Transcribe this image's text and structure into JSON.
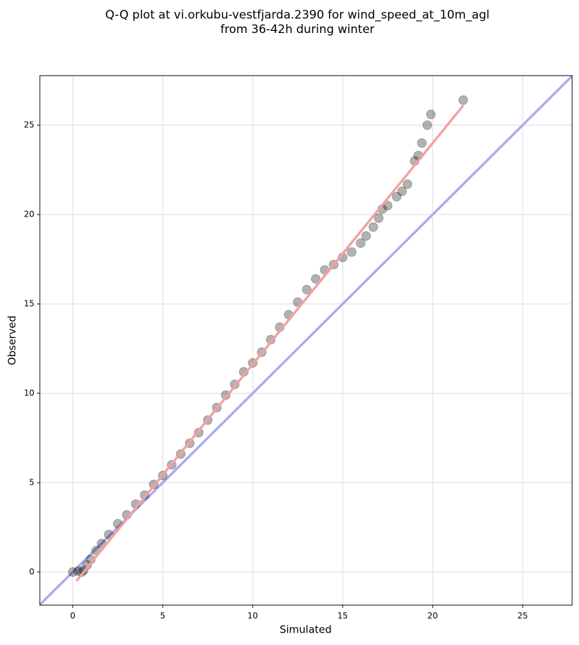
{
  "chart_data": {
    "type": "scatter",
    "title": [
      "Q-Q plot at vi.orkubu-vestfjarda.2390 for wind_speed_at_10m_agl",
      "from 36-42h during winter"
    ],
    "xlabel": "Simulated",
    "ylabel": "Observed",
    "xlim": [
      -1.83,
      27.75
    ],
    "ylim": [
      -1.85,
      27.77
    ],
    "xticks": [
      0,
      5,
      10,
      15,
      20,
      25
    ],
    "yticks": [
      0,
      5,
      10,
      15,
      20,
      25
    ],
    "grid": true,
    "points": {
      "color": "#000000",
      "x": [
        0,
        0.3,
        0.5,
        0.6,
        0.8,
        1,
        1.3,
        1.6,
        2,
        2.5,
        3,
        3.5,
        4,
        4.5,
        5,
        5.5,
        6,
        6.5,
        7,
        7.5,
        8,
        8.5,
        9,
        9.5,
        10,
        10.5,
        11,
        11.5,
        12,
        12.5,
        13,
        13.5,
        14,
        14.5,
        15,
        15.5,
        16,
        16.3,
        16.7,
        17,
        17.2,
        17.5,
        18,
        18.3,
        18.6,
        19,
        19.2,
        19.4,
        19.7,
        19.9,
        21.7
      ],
      "y": [
        0,
        0.05,
        0,
        0.1,
        0.4,
        0.7,
        1.2,
        1.6,
        2.1,
        2.7,
        3.2,
        3.8,
        4.3,
        4.9,
        5.4,
        6.0,
        6.6,
        7.2,
        7.8,
        8.5,
        9.2,
        9.9,
        10.5,
        11.2,
        11.7,
        12.3,
        13.0,
        13.7,
        14.4,
        15.1,
        15.8,
        16.4,
        16.9,
        17.2,
        17.6,
        17.9,
        18.4,
        18.8,
        19.3,
        19.8,
        20.3,
        20.5,
        21.0,
        21.3,
        21.7,
        23.0,
        23.3,
        24.0,
        25.0,
        25.6,
        26.4
      ]
    },
    "fit_line": {
      "color": "#f4a0a0",
      "x": [
        0.2,
        21.7
      ],
      "y": [
        -0.5,
        26.1
      ]
    },
    "identity_line": {
      "color": "#aaaaf2",
      "x": [
        -1.83,
        27.75
      ],
      "y": [
        -1.83,
        27.75
      ]
    }
  }
}
